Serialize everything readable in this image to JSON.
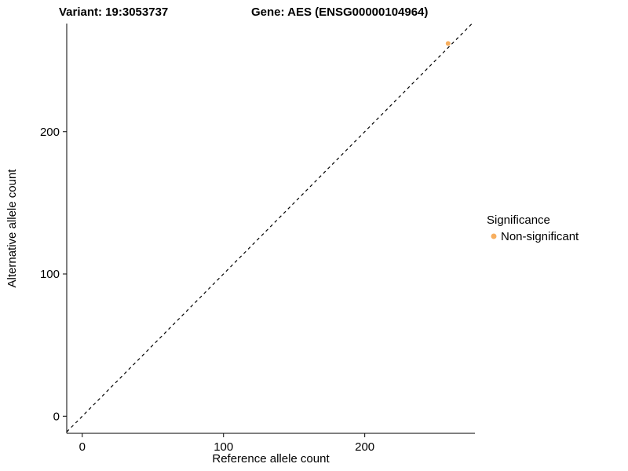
{
  "chart_data": {
    "type": "scatter",
    "title_left": "Variant: 19:3053737",
    "title_right": "Gene: AES (ENSG00000104964)",
    "xlabel": "Reference allele count",
    "ylabel": "Alternative allele count",
    "xlim": [
      -11,
      278
    ],
    "ylim": [
      -12,
      276
    ],
    "xticks": [
      0,
      100,
      200
    ],
    "yticks": [
      0,
      100,
      200
    ],
    "grid": false,
    "background": "#ffffff",
    "axis_color": "#000000",
    "identity_line": {
      "style": "dashed",
      "color": "#000000",
      "equation": "y = x"
    },
    "series": [
      {
        "name": "Non-significant",
        "color": "#F7AE5E",
        "points": [
          {
            "x": 259,
            "y": 262
          }
        ]
      }
    ],
    "legend": {
      "title": "Significance",
      "position": "right",
      "entries": [
        {
          "label": "Non-significant",
          "color": "#F7AE5E"
        }
      ]
    }
  }
}
